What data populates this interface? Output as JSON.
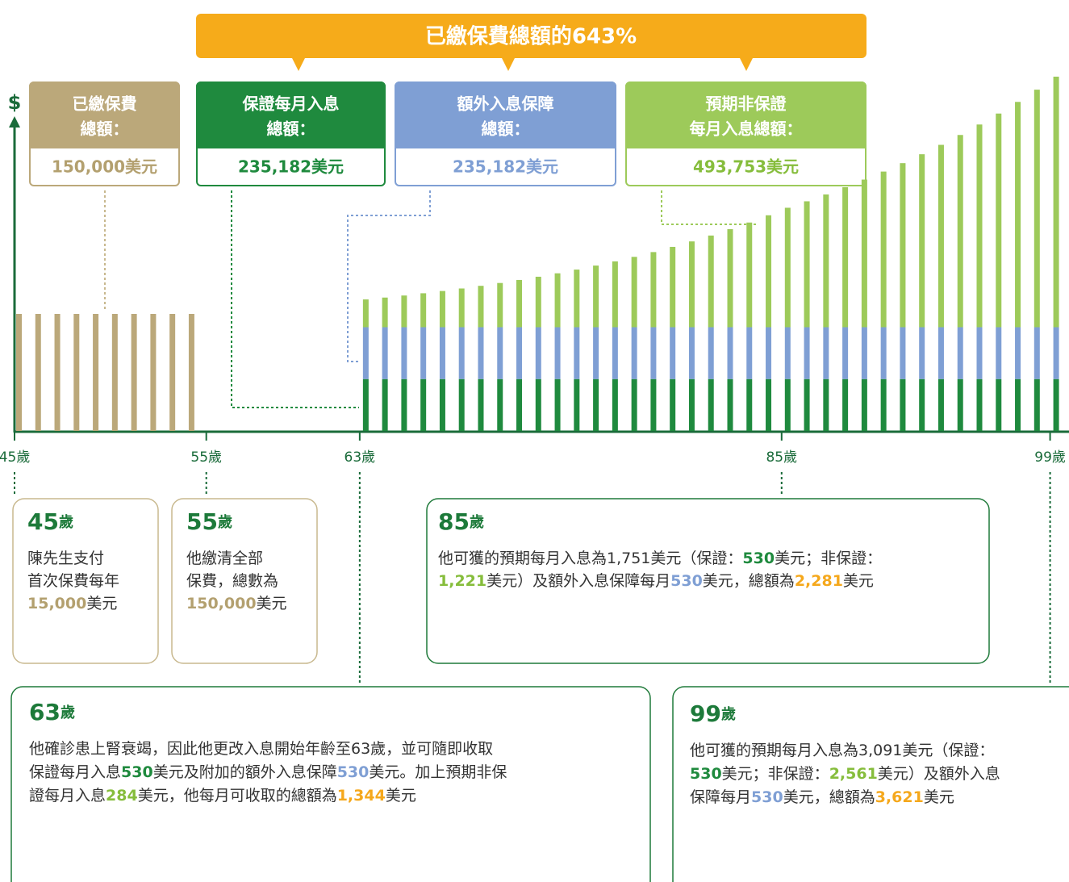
{
  "banner": "已繳保費總額的643%",
  "summary_boxes": [
    {
      "title": [
        "已繳保費",
        "總額："
      ],
      "amount": "150,000美元",
      "color": "#bba87a",
      "text_color": "#b3a06f"
    },
    {
      "title": [
        "保證每月入息",
        "總額："
      ],
      "amount": "235,182美元",
      "color": "#1f8a3e",
      "text_color": "#1f8a3e"
    },
    {
      "title": [
        "額外入息保障",
        "總額："
      ],
      "amount": "235,182美元",
      "color": "#7f9fd4",
      "text_color": "#7f9fd4"
    },
    {
      "title": [
        "預期非保證",
        "每月入息總額："
      ],
      "amount": "493,753美元",
      "color": "#9dca5a",
      "text_color": "#86bd3c"
    }
  ],
  "chart_data": {
    "type": "bar",
    "y_label": "$",
    "x_ticks": [
      {
        "value": 45,
        "label": "45歲"
      },
      {
        "value": 55,
        "label": "55歲"
      },
      {
        "value": 63,
        "label": "63歲"
      },
      {
        "value": 85,
        "label": "85歲"
      },
      {
        "value": 99,
        "label": "99歲"
      }
    ],
    "premium": {
      "color": "#bba87a",
      "x": [
        45,
        46,
        47,
        48,
        49,
        50,
        51,
        52,
        53,
        54
      ],
      "values": [
        15000,
        15000,
        15000,
        15000,
        15000,
        15000,
        15000,
        15000,
        15000,
        15000
      ]
    },
    "income": {
      "x": [
        63,
        64,
        65,
        66,
        67,
        68,
        69,
        70,
        71,
        72,
        73,
        74,
        75,
        76,
        77,
        78,
        79,
        80,
        81,
        82,
        83,
        84,
        85,
        86,
        87,
        88,
        89,
        90,
        91,
        92,
        93,
        94,
        95,
        96,
        97,
        98,
        99
      ],
      "series": [
        {
          "color": "#1f8a3e",
          "values": [
            530,
            530,
            530,
            530,
            530,
            530,
            530,
            530,
            530,
            530,
            530,
            530,
            530,
            530,
            530,
            530,
            530,
            530,
            530,
            530,
            530,
            530,
            530,
            530,
            530,
            530,
            530,
            530,
            530,
            530,
            530,
            530,
            530,
            530,
            530,
            530,
            530
          ]
        },
        {
          "color": "#7f9fd4",
          "values": [
            530,
            530,
            530,
            530,
            530,
            530,
            530,
            530,
            530,
            530,
            530,
            530,
            530,
            530,
            530,
            530,
            530,
            530,
            530,
            530,
            530,
            530,
            530,
            530,
            530,
            530,
            530,
            530,
            530,
            530,
            530,
            530,
            530,
            530,
            530,
            530,
            530
          ]
        },
        {
          "color": "#9dca5a",
          "values": [
            284,
            303,
            324,
            347,
            370,
            396,
            423,
            452,
            483,
            516,
            551,
            589,
            630,
            673,
            719,
            768,
            821,
            877,
            937,
            1002,
            1070,
            1144,
            1221,
            1287,
            1357,
            1431,
            1509,
            1591,
            1677,
            1768,
            1864,
            1965,
            2072,
            2184,
            2303,
            2428,
            2561
          ]
        }
      ]
    }
  },
  "callouts": [
    {
      "age": "45",
      "unit": "歲",
      "border": "#c8b88e",
      "lines": [
        [
          {
            "t": "陳先生支付"
          }
        ],
        [
          {
            "t": "首次保費每年"
          }
        ],
        [
          {
            "t": "15,000",
            "s": "gold"
          },
          {
            "t": "美元"
          }
        ]
      ]
    },
    {
      "age": "55",
      "unit": "歲",
      "border": "#c8b88e",
      "lines": [
        [
          {
            "t": "他繳清全部"
          }
        ],
        [
          {
            "t": "保費，總數為"
          }
        ],
        [
          {
            "t": "150,000",
            "s": "gold"
          },
          {
            "t": "美元"
          }
        ]
      ]
    },
    {
      "age": "85",
      "unit": "歲",
      "border": "#1f7a3a",
      "lines": [
        [
          {
            "t": "他可獲的預期每月入息為1,751美元（保證："
          },
          {
            "t": "530",
            "s": "green"
          },
          {
            "t": "美元；非保證："
          }
        ],
        [
          {
            "t": "1,221",
            "s": "lime"
          },
          {
            "t": "美元）及額外入息保障每月"
          },
          {
            "t": "530",
            "s": "blue"
          },
          {
            "t": "美元，總額為"
          },
          {
            "t": "2,281",
            "s": "orange"
          },
          {
            "t": "美元"
          }
        ]
      ]
    },
    {
      "age": "63",
      "unit": "歲",
      "border": "#1f7a3a",
      "lines": [
        [
          {
            "t": "他確診患上腎衰竭，因此他更改入息開始年齡至63歲，並可隨即收取"
          }
        ],
        [
          {
            "t": "保證每月入息"
          },
          {
            "t": "530",
            "s": "green"
          },
          {
            "t": "美元及附加的額外入息保障"
          },
          {
            "t": "530",
            "s": "blue"
          },
          {
            "t": "美元。加上預期非保"
          }
        ],
        [
          {
            "t": "證每月入息"
          },
          {
            "t": "284",
            "s": "lime"
          },
          {
            "t": "美元，他每月可收取的總額為"
          },
          {
            "t": "1,344",
            "s": "orange"
          },
          {
            "t": "美元"
          }
        ]
      ]
    },
    {
      "age": "99",
      "unit": "歲",
      "border": "#1f7a3a",
      "lines": [
        [
          {
            "t": "他可獲的預期每月入息為3,091美元（保證："
          }
        ],
        [
          {
            "t": "530",
            "s": "green"
          },
          {
            "t": "美元；非保證："
          },
          {
            "t": "2,561",
            "s": "lime"
          },
          {
            "t": "美元）及額外入息"
          }
        ],
        [
          {
            "t": "保障每月"
          },
          {
            "t": "530",
            "s": "blue"
          },
          {
            "t": "美元，總額為"
          },
          {
            "t": "3,621",
            "s": "orange"
          },
          {
            "t": "美元"
          }
        ]
      ]
    }
  ]
}
